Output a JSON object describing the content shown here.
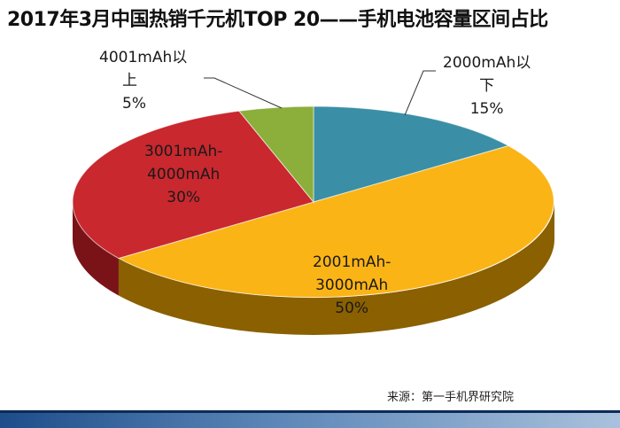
{
  "chart_data": {
    "type": "pie",
    "title": "2017年3月中国热销千元机TOP 20——手机电池容量区间占比",
    "slices": [
      {
        "label": "2000mAh以下",
        "label_lines": [
          "2000mAh以",
          "下"
        ],
        "value": 15,
        "value_text": "15%",
        "color": "#3a8fa6",
        "side": "#1f5d6e"
      },
      {
        "label": "2001mAh-3000mAh",
        "label_lines": [
          "2001mAh-",
          "3000mAh"
        ],
        "value": 50,
        "value_text": "50%",
        "color": "#fbb416",
        "side": "#8a6000"
      },
      {
        "label": "3001mAh-4000mAh",
        "label_lines": [
          "3001mAh-",
          "4000mAh"
        ],
        "value": 30,
        "value_text": "30%",
        "color": "#c8282e",
        "side": "#7a1318"
      },
      {
        "label": "4001mAh以上",
        "label_lines": [
          "4001mAh以",
          "上"
        ],
        "value": 5,
        "value_text": "5%",
        "color": "#8cae3a",
        "side": "#55701d"
      }
    ],
    "legend": "none"
  },
  "source": "来源：第一手机界研究院"
}
